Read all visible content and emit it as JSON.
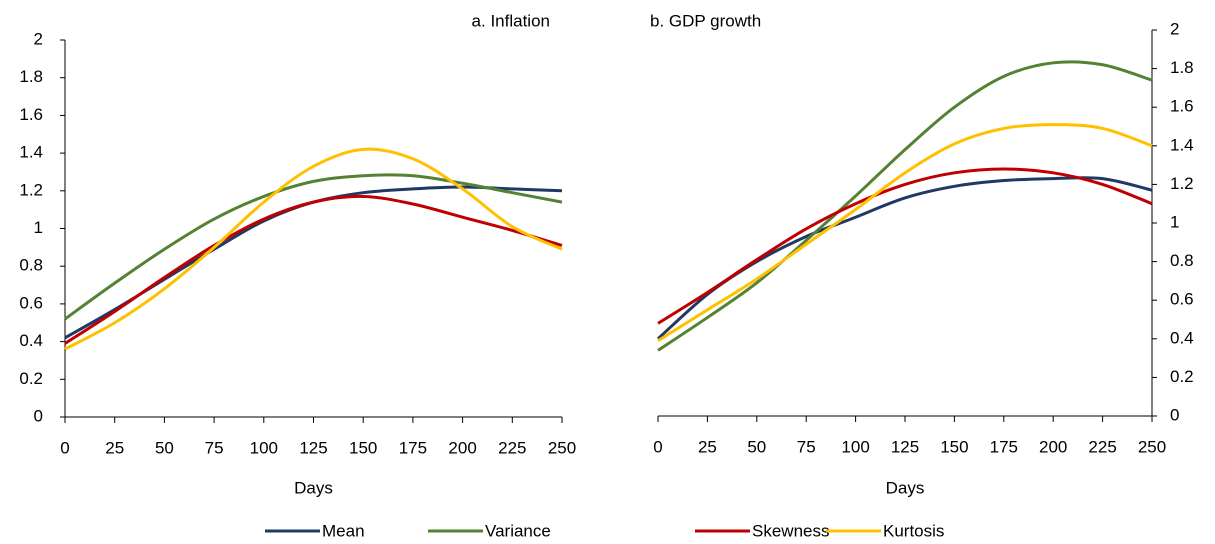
{
  "chart_data": [
    {
      "type": "line",
      "title": "a. Inflation",
      "x_label": "Days",
      "x": [
        0,
        25,
        50,
        75,
        100,
        125,
        150,
        175,
        200,
        225,
        250
      ],
      "xlim": [
        0,
        250
      ],
      "xticks": [
        0,
        25,
        50,
        75,
        100,
        125,
        150,
        175,
        200,
        225,
        250
      ],
      "ylim": [
        0,
        2
      ],
      "yticks": [
        0,
        0.2,
        0.4,
        0.6,
        0.8,
        1,
        1.2,
        1.4,
        1.6,
        1.8,
        2
      ],
      "y_axis_side": "left",
      "grid": false,
      "series": [
        {
          "name": "Mean",
          "color": "#203864",
          "values": [
            0.42,
            0.57,
            0.73,
            0.89,
            1.04,
            1.14,
            1.19,
            1.21,
            1.22,
            1.21,
            1.2
          ]
        },
        {
          "name": "Variance",
          "color": "#548235",
          "values": [
            0.52,
            0.71,
            0.89,
            1.05,
            1.17,
            1.25,
            1.28,
            1.28,
            1.24,
            1.19,
            1.14
          ]
        },
        {
          "name": "Skewness",
          "color": "#c00000",
          "values": [
            0.39,
            0.56,
            0.74,
            0.91,
            1.05,
            1.14,
            1.17,
            1.13,
            1.06,
            0.99,
            0.91
          ]
        },
        {
          "name": "Kurtosis",
          "color": "#ffc000",
          "values": [
            0.36,
            0.5,
            0.68,
            0.9,
            1.14,
            1.33,
            1.42,
            1.37,
            1.21,
            1.01,
            0.89
          ]
        }
      ]
    },
    {
      "type": "line",
      "title": "b. GDP growth",
      "x_label": "Days",
      "x": [
        0,
        25,
        50,
        75,
        100,
        125,
        150,
        175,
        200,
        225,
        250
      ],
      "xlim": [
        0,
        250
      ],
      "xticks": [
        0,
        25,
        50,
        75,
        100,
        125,
        150,
        175,
        200,
        225,
        250
      ],
      "ylim": [
        0,
        2
      ],
      "yticks": [
        0,
        0.2,
        0.4,
        0.6,
        0.8,
        1,
        1.2,
        1.4,
        1.6,
        1.8,
        2
      ],
      "y_axis_side": "right",
      "grid": false,
      "series": [
        {
          "name": "Mean",
          "color": "#203864",
          "values": [
            0.4,
            0.63,
            0.8,
            0.93,
            1.03,
            1.13,
            1.19,
            1.22,
            1.23,
            1.23,
            1.17
          ]
        },
        {
          "name": "Variance",
          "color": "#548235",
          "values": [
            0.34,
            0.51,
            0.69,
            0.91,
            1.14,
            1.38,
            1.6,
            1.76,
            1.83,
            1.82,
            1.74
          ]
        },
        {
          "name": "Skewness",
          "color": "#c00000",
          "values": [
            0.48,
            0.64,
            0.81,
            0.97,
            1.1,
            1.2,
            1.26,
            1.28,
            1.26,
            1.2,
            1.1
          ]
        },
        {
          "name": "Kurtosis",
          "color": "#ffc000",
          "values": [
            0.39,
            0.55,
            0.71,
            0.89,
            1.07,
            1.26,
            1.41,
            1.49,
            1.51,
            1.49,
            1.4
          ]
        }
      ]
    }
  ]
}
